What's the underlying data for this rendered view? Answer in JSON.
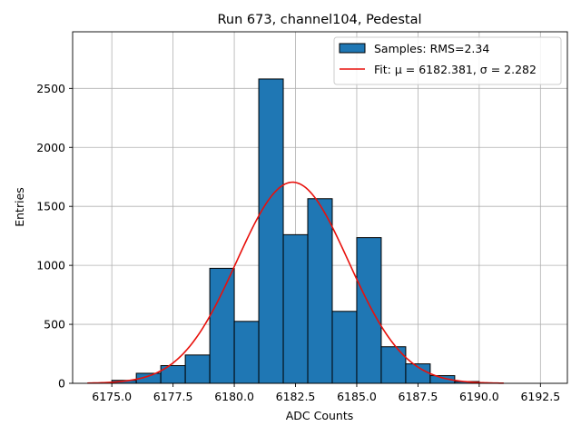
{
  "chart_data": {
    "type": "bar",
    "title": "Run 673, channel104, Pedestal",
    "xlabel": "ADC Counts",
    "ylabel": "Entries",
    "xlim": [
      6173.4,
      6193.6
    ],
    "ylim": [
      0,
      2980
    ],
    "grid": true,
    "legend_position": "top-right",
    "xticks": [
      6175.0,
      6177.5,
      6180.0,
      6182.5,
      6185.0,
      6187.5,
      6190.0,
      6192.5
    ],
    "xtick_labels": [
      "6175.0",
      "6177.5",
      "6180.0",
      "6182.5",
      "6185.0",
      "6187.5",
      "6190.0",
      "6192.5"
    ],
    "yticks": [
      0,
      500,
      1000,
      1500,
      2000,
      2500
    ],
    "ytick_labels": [
      "0",
      "500",
      "1000",
      "1500",
      "2000",
      "2500"
    ],
    "histogram": {
      "name": "Samples: RMS=2.34",
      "color": "#1f77b4",
      "bin_edges": [
        6175.0,
        6176.0,
        6177.0,
        6178.0,
        6179.0,
        6180.0,
        6181.0,
        6182.0,
        6183.0,
        6184.0,
        6185.0,
        6186.0,
        6187.0,
        6188.0,
        6189.0,
        6190.0
      ],
      "counts": [
        25,
        85,
        150,
        240,
        975,
        525,
        2580,
        1260,
        1565,
        610,
        1235,
        310,
        165,
        65,
        15
      ]
    },
    "fit": {
      "name": "Fit: μ = 6182.381, σ = 2.282",
      "color": "#e8100b",
      "mu": 6182.381,
      "sigma": 2.282,
      "amplitude": 1705,
      "x_range": [
        6174.0,
        6191.0
      ]
    }
  }
}
